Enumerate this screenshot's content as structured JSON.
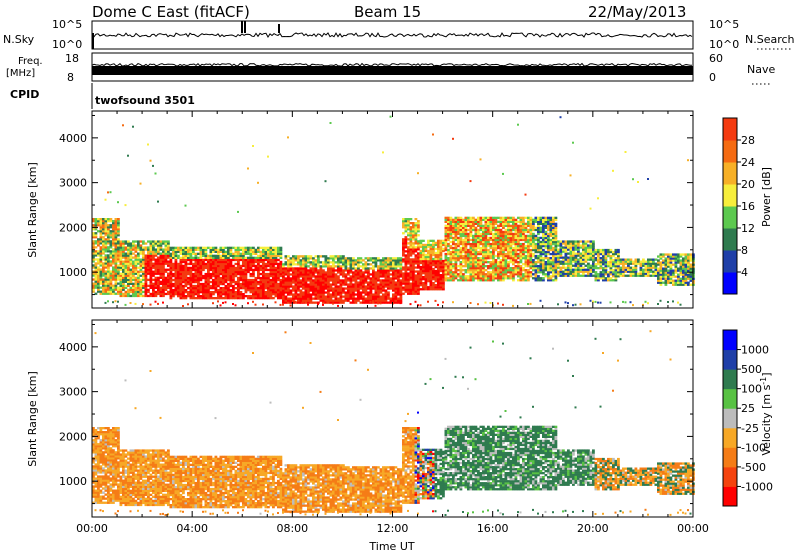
{
  "header": {
    "station": "Dome C East (fitACF)",
    "beam": "Beam 15",
    "date": "22/May/2013"
  },
  "strips": {
    "nsky_label": "N.Sky",
    "nsky_top_tick": "10^5",
    "nsky_bottom_tick": "10^0",
    "nsearch_label": "N.Search",
    "nsearch_top_tick": "10^5",
    "nsearch_bottom_tick": "10^0",
    "freq_label_line1": "Freq.",
    "freq_label_line2": "[MHz]",
    "freq_top_tick": "18",
    "freq_bottom_tick": "8",
    "nave_label": "Nave",
    "nave_top_tick": "60",
    "nave_bottom_tick": "0",
    "cpid_label": "CPID",
    "cpid_value": "twofsound 3501"
  },
  "colors": {
    "power_scale": [
      "#0000ff",
      "#1f3fa8",
      "#2f7b4f",
      "#5cc94f",
      "#f7ee3c",
      "#f7b027",
      "#f56b12",
      "#f43a10",
      "#ff0000"
    ],
    "velocity_scale": [
      "#ff0000",
      "#f5430e",
      "#f57c16",
      "#f7a826",
      "#bcbcbc",
      "#58c243",
      "#2f7b4f",
      "#1f3fa8",
      "#0000ff"
    ]
  },
  "chart_data": [
    {
      "type": "heatmap",
      "panel": "power",
      "ylabel": "Slant Range [km]",
      "xlabel": "",
      "xlim": [
        "00:00",
        "00:00"
      ],
      "ylim": [
        200,
        4600
      ],
      "y_ticks": [
        "1000",
        "2000",
        "3000",
        "4000"
      ],
      "x_ticks": [
        "00:00",
        "04:00",
        "08:00",
        "12:00",
        "16:00",
        "20:00",
        "00:00"
      ],
      "colorbar": {
        "label": "Power [dB]",
        "ticks": [
          "4",
          "8",
          "12",
          "16",
          "20",
          "24",
          "28"
        ],
        "range": [
          0,
          32
        ]
      }
    },
    {
      "type": "heatmap",
      "panel": "velocity",
      "ylabel": "Slant Range [km]",
      "xlabel": "Time UT",
      "xlim": [
        "00:00",
        "00:00"
      ],
      "ylim": [
        200,
        4600
      ],
      "y_ticks": [
        "1000",
        "2000",
        "3000",
        "4000"
      ],
      "x_ticks": [
        "00:00",
        "04:00",
        "08:00",
        "12:00",
        "16:00",
        "20:00",
        "00:00"
      ],
      "colorbar": {
        "label": "Velocity [m s^-1]",
        "ticks": [
          "1000",
          "500",
          "100",
          "25",
          "-25",
          "-100",
          "-500",
          "-1000"
        ]
      }
    }
  ]
}
